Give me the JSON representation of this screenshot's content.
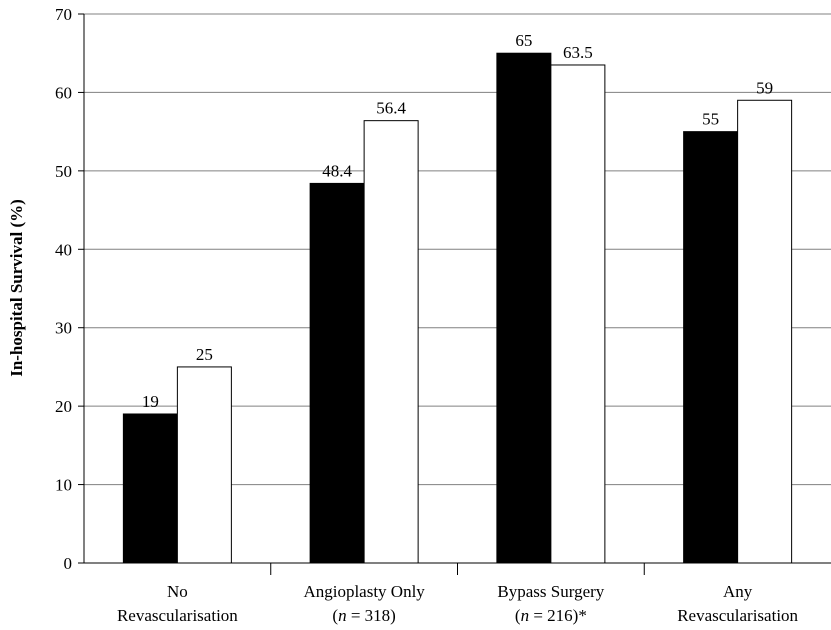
{
  "chart_data": {
    "type": "bar",
    "title": "",
    "xlabel": "",
    "ylabel": "In-hospital Survival (%)",
    "ylim": [
      0,
      70
    ],
    "yticks": [
      0,
      10,
      20,
      30,
      40,
      50,
      60,
      70
    ],
    "grid": true,
    "categories": [
      {
        "line1": "No",
        "line2_pre": "",
        "line2_italic": "",
        "line2_post": "Revascularisation"
      },
      {
        "line1": "Angioplasty Only",
        "line2_pre": "(",
        "line2_italic": "n",
        "line2_post": " = 318)"
      },
      {
        "line1": "Bypass Surgery",
        "line2_pre": "(",
        "line2_italic": "n",
        "line2_post": " = 216)*"
      },
      {
        "line1": "Any",
        "line2_pre": "",
        "line2_italic": "",
        "line2_post": "Revascularisation"
      }
    ],
    "series": [
      {
        "color": "#000000",
        "values": [
          19,
          48.4,
          65,
          55
        ],
        "labels": [
          "19",
          "48.4",
          "65",
          "55"
        ]
      },
      {
        "color": "#ffffff",
        "values": [
          25,
          56.4,
          63.5,
          59
        ],
        "labels": [
          "25",
          "56.4",
          "63.5",
          "59"
        ]
      }
    ]
  }
}
